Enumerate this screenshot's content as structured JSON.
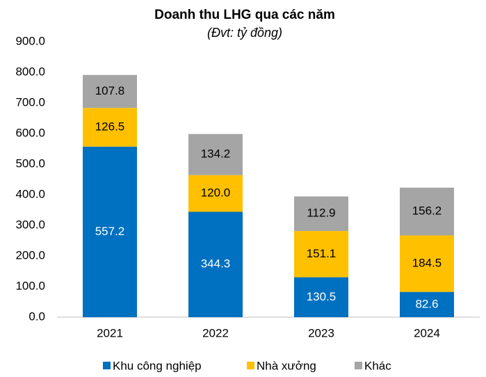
{
  "chart_data": {
    "type": "stacked_bar",
    "title": "Doanh thu LHG qua các năm",
    "subtitle": "(Đvt: tỷ đồng)",
    "categories": [
      "2021",
      "2022",
      "2023",
      "2024"
    ],
    "series": [
      {
        "name": "Khu công nghiệp",
        "color": "#0070c0",
        "values": [
          557.2,
          344.3,
          130.5,
          82.6
        ],
        "value_labels": [
          "557.2",
          "344.3",
          "130.5",
          "82.6"
        ]
      },
      {
        "name": "Nhà xưởng",
        "color": "#ffc000",
        "values": [
          126.5,
          120.0,
          151.1,
          184.5
        ],
        "value_labels": [
          "126.5",
          "120.0",
          "151.1",
          "184.5"
        ]
      },
      {
        "name": "Khác",
        "color": "#a5a5a5",
        "values": [
          107.8,
          134.2,
          112.9,
          156.2
        ],
        "value_labels": [
          "107.8",
          "134.2",
          "112.9",
          "156.2"
        ]
      }
    ],
    "ylim": [
      0,
      900
    ],
    "yticks": [
      {
        "value": 0,
        "label": "0.0"
      },
      {
        "value": 100,
        "label": "100.0"
      },
      {
        "value": 200,
        "label": "200.0"
      },
      {
        "value": 300,
        "label": "300.0"
      },
      {
        "value": 400,
        "label": "400.0"
      },
      {
        "value": 500,
        "label": "500.0"
      },
      {
        "value": 600,
        "label": "600.0"
      },
      {
        "value": 700,
        "label": "700.0"
      },
      {
        "value": 800,
        "label": "800.0"
      },
      {
        "value": 900,
        "label": "900.0"
      }
    ],
    "grid": false,
    "legend": "bottom"
  }
}
